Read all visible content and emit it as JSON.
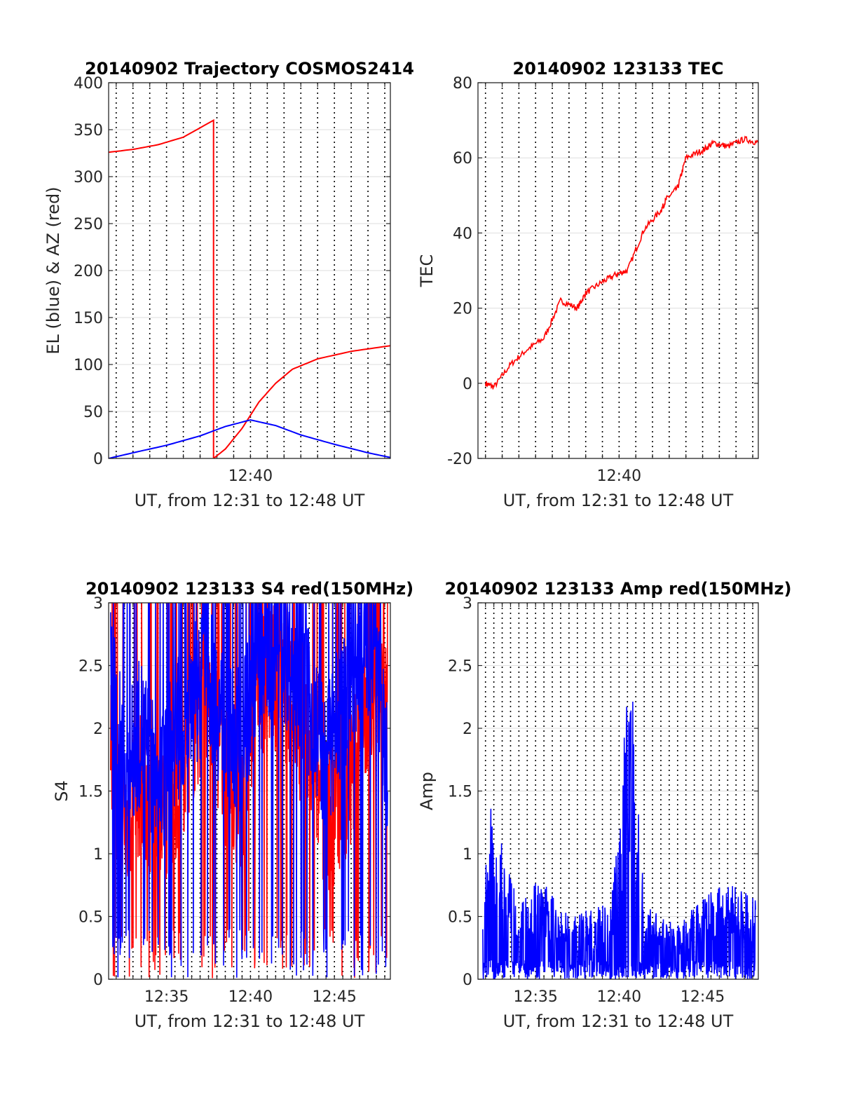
{
  "chart_data": [
    {
      "type": "line",
      "title": "20140902 Trajectory COSMOS2414",
      "xlabel": "UT, from 12:31 to 12:48 UT",
      "ylabel": "EL (blue) & AZ (red)",
      "xlim": [
        "12:31:33",
        "12:48:20"
      ],
      "ylim": [
        0,
        400
      ],
      "yticks": [
        "0",
        "50",
        "100",
        "150",
        "200",
        "250",
        "300",
        "350",
        "400"
      ],
      "xticks": [
        "12:40"
      ],
      "grid": "dotted vertical every 1 min, light horizontal at y ticks",
      "series": [
        {
          "color": "#ff0000",
          "x": [
            "12:31:33",
            "12:33:00",
            "12:34:30",
            "12:36:00",
            "12:37:48",
            "12:37:48",
            "12:38:30",
            "12:39:30",
            "12:40:30",
            "12:41:30",
            "12:42:30",
            "12:44:00",
            "12:46:00",
            "12:48:20"
          ],
          "values": [
            326,
            329,
            334,
            342,
            360,
            0,
            10,
            32,
            60,
            80,
            95,
            106,
            114,
            120
          ]
        },
        {
          "color": "#0000ff",
          "x": [
            "12:31:33",
            "12:33:00",
            "12:35:00",
            "12:37:00",
            "12:38:30",
            "12:40:00",
            "12:41:30",
            "12:43:00",
            "12:45:00",
            "12:47:00",
            "12:48:20"
          ],
          "values": [
            0,
            6,
            14,
            24,
            34,
            41,
            35,
            25,
            15,
            6,
            1
          ]
        }
      ]
    },
    {
      "type": "line",
      "title": "20140902 123133 TEC",
      "xlabel": "UT, from 12:31 to 12:48 UT",
      "ylabel": "TEC",
      "xlim": [
        "12:31:33",
        "12:48:20"
      ],
      "ylim": [
        -20,
        80
      ],
      "yticks": [
        "-20",
        "0",
        "20",
        "40",
        "60",
        "80"
      ],
      "xticks": [
        "12:40"
      ],
      "grid": "dotted vertical every 1 min, light horizontal at y ticks",
      "series": [
        {
          "color": "#ff0000",
          "x": [
            "12:32:00",
            "12:32:30",
            "12:33:30",
            "12:34:30",
            "12:35:30",
            "12:36:30",
            "12:37:30",
            "12:38:00",
            "12:39:00",
            "12:39:50",
            "12:40:30",
            "12:41:30",
            "12:42:30",
            "12:42:50",
            "12:43:30",
            "12:44:00",
            "12:45:00",
            "12:45:40",
            "12:46:30",
            "12:47:30",
            "12:48:20"
          ],
          "values": [
            0,
            -1,
            5,
            9,
            12,
            22,
            20,
            24,
            27,
            29,
            30,
            41,
            46,
            49,
            52,
            60,
            62,
            64,
            63,
            65,
            64
          ]
        }
      ]
    },
    {
      "type": "line",
      "title": "20140902 123133 S4 red(150MHz)",
      "xlabel": "UT, from 12:31 to 12:48 UT",
      "ylabel": "S4",
      "xlim": [
        "12:31:33",
        "12:48:20"
      ],
      "ylim": [
        0,
        3
      ],
      "yticks": [
        "0",
        "0.5",
        "1",
        "1.5",
        "2",
        "2.5",
        "3"
      ],
      "xticks": [
        "12:35",
        "12:40",
        "12:45"
      ],
      "grid": "dotted vertical every 30 s, light horizontal at y ticks",
      "series": [
        {
          "color": "#ff0000",
          "x": [
            "12:31:40",
            "12:32:30",
            "12:33:30",
            "12:34:30",
            "12:35:30",
            "12:36:30",
            "12:37:30",
            "12:38:30",
            "12:39:30",
            "12:40:30",
            "12:41:30",
            "12:42:30",
            "12:43:30",
            "12:44:30",
            "12:45:30",
            "12:46:30",
            "12:47:30",
            "12:48:10"
          ],
          "values": [
            1.8,
            1.2,
            1.6,
            1.3,
            1.5,
            2.0,
            2.3,
            1.6,
            1.4,
            2.4,
            2.4,
            2.2,
            1.8,
            1.3,
            1.2,
            2.0,
            2.4,
            2.1
          ]
        },
        {
          "color": "#0000ff",
          "x": [
            "12:31:40",
            "12:32:30",
            "12:33:30",
            "12:34:30",
            "12:35:30",
            "12:36:30",
            "12:37:30",
            "12:38:30",
            "12:39:30",
            "12:40:30",
            "12:41:30",
            "12:42:30",
            "12:43:30",
            "12:44:30",
            "12:45:30",
            "12:46:30",
            "12:47:30",
            "12:48:10"
          ],
          "values": [
            2.4,
            1.6,
            2.0,
            1.5,
            1.9,
            2.3,
            2.4,
            2.0,
            1.9,
            2.6,
            2.7,
            2.5,
            2.2,
            1.7,
            2.2,
            2.6,
            2.7,
            1.6
          ]
        }
      ]
    },
    {
      "type": "line",
      "title": "20140902 123133 Amp red(150MHz)",
      "xlabel": "UT, from 12:31 to 12:48 UT",
      "ylabel": "Amp",
      "xlim": [
        "12:31:33",
        "12:48:20"
      ],
      "ylim": [
        0,
        3
      ],
      "yticks": [
        "0",
        "0.5",
        "1",
        "1.5",
        "2",
        "2.5",
        "3"
      ],
      "xticks": [
        "12:35",
        "12:40",
        "12:45"
      ],
      "grid": "dotted vertical every 30 s, light horizontal at y ticks",
      "series": [
        {
          "color": "#0000ff",
          "x": [
            "12:31:50",
            "12:32:20",
            "12:33:30",
            "12:34:30",
            "12:35:30",
            "12:36:30",
            "12:37:30",
            "12:38:30",
            "12:39:30",
            "12:40:30",
            "12:40:45",
            "12:41:30",
            "12:42:30",
            "12:43:30",
            "12:44:30",
            "12:45:30",
            "12:46:30",
            "12:47:30",
            "12:48:10"
          ],
          "values": [
            0.7,
            1.44,
            0.8,
            0.75,
            0.8,
            0.55,
            0.5,
            0.6,
            0.6,
            2.3,
            2.48,
            0.6,
            0.5,
            0.45,
            0.6,
            0.7,
            0.8,
            0.7,
            0.65
          ]
        }
      ]
    }
  ]
}
